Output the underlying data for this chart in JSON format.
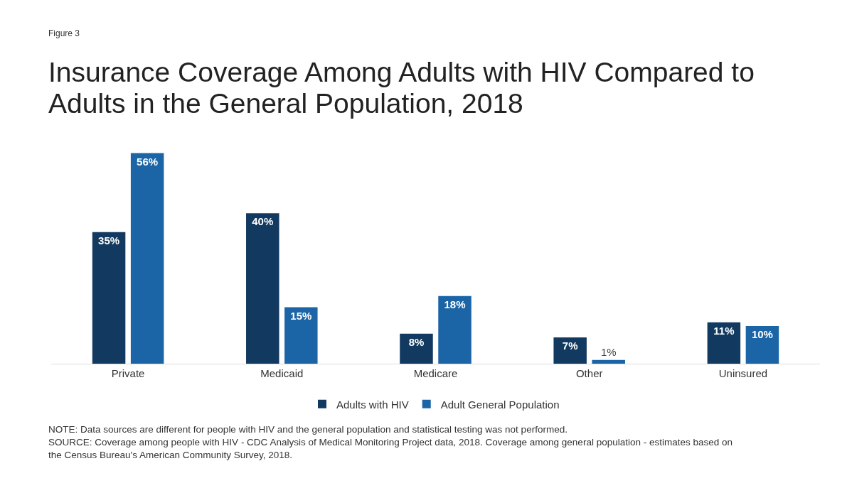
{
  "chart_data": {
    "type": "bar",
    "subtitle": "Figure 3",
    "title": "Insurance Coverage Among Adults with HIV Compared to Adults in the General Population, 2018",
    "categories": [
      "Private",
      "Medicaid",
      "Medicare",
      "Other",
      "Uninsured"
    ],
    "series": [
      {
        "name": "Adults with HIV",
        "color": "#12395f",
        "values": [
          35,
          40,
          8,
          7,
          11
        ],
        "value_labels": [
          "35%",
          "40%",
          "8%",
          "7%",
          "11%"
        ]
      },
      {
        "name": "Adult General Population",
        "color": "#1b65a6",
        "values": [
          56,
          15,
          18,
          1,
          10
        ],
        "value_labels": [
          "56%",
          "15%",
          "18%",
          "1%",
          "10%"
        ]
      }
    ],
    "legend": "bottom",
    "annotations": [
      "NOTE: Data sources are different for people with HIV and the general population and statistical testing was not performed.",
      "SOURCE: Coverage among people with HIV - CDC Analysis of Medical Monitoring Project data, 2018. Coverage among general population - estimates based on the Census Bureau's American Community Survey, 2018."
    ]
  }
}
